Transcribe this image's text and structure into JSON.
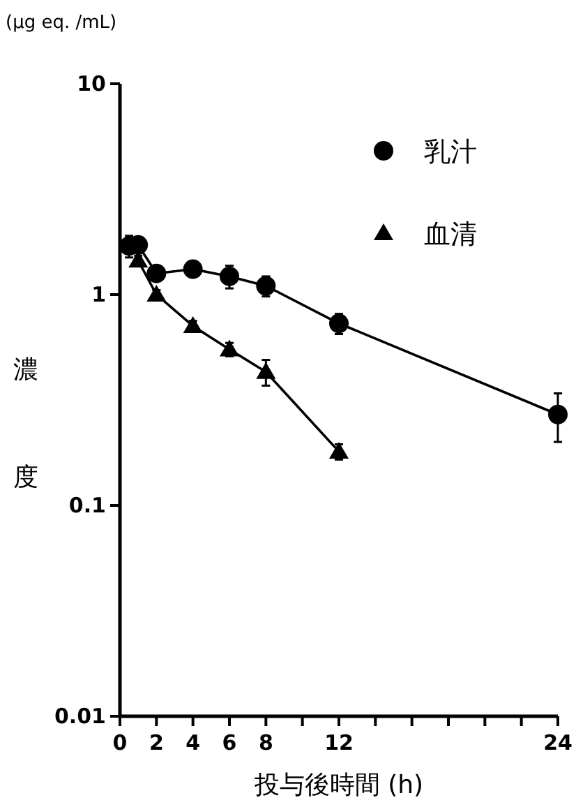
{
  "chart_data": {
    "type": "line",
    "xlabel": "投与後時間 (h)",
    "ylabel": "濃度",
    "annotations": [
      "(μg eq. /mL)"
    ],
    "x": [
      0.5,
      1,
      2,
      4,
      6,
      8,
      12,
      24
    ],
    "series": [
      {
        "name": "乳汁",
        "color": "#000000",
        "marker": "circle",
        "values": [
          1.7,
          1.72,
          1.26,
          1.32,
          1.22,
          1.1,
          0.73,
          0.27
        ],
        "errors": [
          0.2,
          0.1,
          0.05,
          0.05,
          0.15,
          0.12,
          0.08,
          0.07
        ]
      },
      {
        "name": "血清",
        "color": "#000000",
        "marker": "triangle",
        "x": [
          1,
          2,
          4,
          6,
          8,
          12
        ],
        "values": [
          1.45,
          1.0,
          0.71,
          0.55,
          0.43,
          0.18
        ],
        "errors": [
          0.08,
          0.05,
          0.04,
          0.04,
          0.06,
          0.015
        ]
      }
    ],
    "log": "y",
    "xlim": [
      0,
      24
    ],
    "ylim": [
      0.01,
      10
    ],
    "xticks": [
      0,
      2,
      4,
      6,
      8,
      {
        "value": 10,
        "label": null
      },
      12,
      {
        "value": 14,
        "label": null
      },
      {
        "value": 16,
        "label": null
      },
      {
        "value": 18,
        "label": null
      },
      {
        "value": 20,
        "label": null
      },
      {
        "value": 22,
        "label": null
      },
      24
    ],
    "yticks": [
      0.01,
      0.1,
      1,
      10
    ],
    "legend": "top right",
    "grid": false,
    "line_style": "solid"
  }
}
